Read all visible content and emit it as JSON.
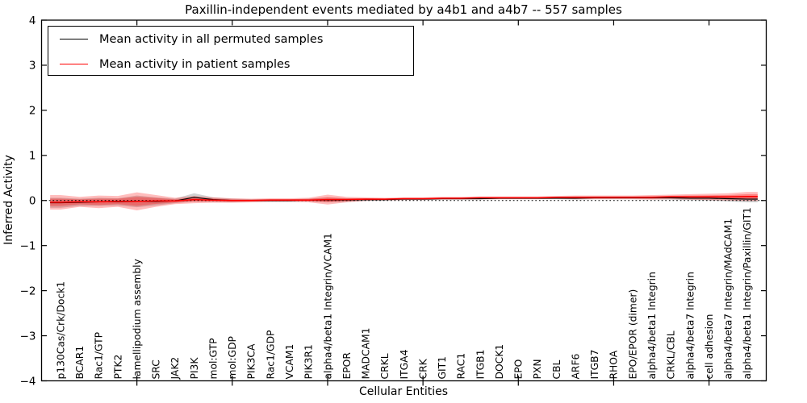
{
  "chart_data": {
    "type": "area",
    "title": "Paxillin-independent events mediated by a4b1 and a4b7 -- 557 samples",
    "xlabel": "Cellular Entities",
    "ylabel": "Inferred Activity",
    "ylim": [
      -4,
      4
    ],
    "yticks": [
      -4,
      -3,
      -2,
      -1,
      0,
      1,
      2,
      3,
      4
    ],
    "xtick_indices": [
      4,
      9,
      14,
      19,
      24,
      29,
      34
    ],
    "grid": false,
    "zero_line": true,
    "legend_position": "upper left",
    "categories": [
      "p130Cas/Crk/Dock1",
      "BCAR1",
      "Rac1/GTP",
      "PTK2",
      "lamellipodium assembly",
      "SRC",
      "JAK2",
      "PI3K",
      "mol:GTP",
      "mol:GDP",
      "PIK3CA",
      "Rac1/GDP",
      "VCAM1",
      "PIK3R1",
      "alpha4/beta1 Integrin/VCAM1",
      "EPOR",
      "MADCAM1",
      "CRKL",
      "ITGA4",
      "CRK",
      "GIT1",
      "RAC1",
      "ITGB1",
      "DOCK1",
      "EPO",
      "PXN",
      "CBL",
      "ARF6",
      "ITGB7",
      "RHOA",
      "EPO/EPOR (dimer)",
      "alpha4/beta1 Integrin",
      "CRKL/CBL",
      "alpha4/beta7 Integrin",
      "cell adhesion",
      "alpha4/beta7 Integrin/MAdCAM1",
      "alpha4/beta1 Integrin/Paxillin/GIT1"
    ],
    "series": [
      {
        "key": "permuted",
        "name": "Mean activity in all permuted samples",
        "color": "#000000",
        "values": [
          -0.05,
          -0.04,
          -0.03,
          -0.03,
          -0.02,
          -0.02,
          -0.01,
          0.07,
          0.02,
          0.0,
          0.0,
          0.0,
          0.0,
          0.01,
          0.01,
          0.01,
          0.02,
          0.02,
          0.03,
          0.03,
          0.04,
          0.04,
          0.04,
          0.05,
          0.05,
          0.05,
          0.05,
          0.05,
          0.06,
          0.06,
          0.06,
          0.06,
          0.06,
          0.05,
          0.05,
          0.04,
          0.03
        ]
      },
      {
        "key": "patient",
        "name": "Mean activity in patient samples",
        "color": "#ff0000",
        "values": [
          -0.04,
          -0.03,
          -0.03,
          -0.02,
          -0.02,
          -0.01,
          -0.01,
          0.02,
          0.01,
          0.0,
          0.0,
          0.01,
          0.01,
          0.01,
          0.02,
          0.02,
          0.03,
          0.03,
          0.04,
          0.04,
          0.05,
          0.05,
          0.06,
          0.06,
          0.06,
          0.06,
          0.07,
          0.07,
          0.07,
          0.07,
          0.07,
          0.07,
          0.08,
          0.08,
          0.08,
          0.08,
          0.09
        ]
      }
    ],
    "spread_bands": [
      {
        "name": "permuted-spread-band",
        "series": "permuted",
        "fill": "rgba(0,0,0,0.18)",
        "half_widths": [
          0.11,
          0.08,
          0.09,
          0.08,
          0.13,
          0.09,
          0.05,
          0.09,
          0.05,
          0.04,
          0.03,
          0.03,
          0.03,
          0.03,
          0.05,
          0.04,
          0.03,
          0.02,
          0.02,
          0.02,
          0.02,
          0.02,
          0.02,
          0.02,
          0.02,
          0.02,
          0.02,
          0.03,
          0.03,
          0.03,
          0.03,
          0.03,
          0.04,
          0.04,
          0.05,
          0.06,
          0.07
        ]
      },
      {
        "name": "patient-spread-band",
        "series": "patient",
        "fill": "rgba(255,0,0,0.26)",
        "half_widths": [
          0.16,
          0.11,
          0.14,
          0.12,
          0.2,
          0.13,
          0.07,
          0.08,
          0.06,
          0.05,
          0.04,
          0.04,
          0.04,
          0.05,
          0.11,
          0.06,
          0.04,
          0.03,
          0.03,
          0.03,
          0.03,
          0.03,
          0.03,
          0.03,
          0.03,
          0.03,
          0.03,
          0.04,
          0.04,
          0.04,
          0.04,
          0.05,
          0.05,
          0.06,
          0.07,
          0.08,
          0.1
        ]
      },
      {
        "name": "patient-spread-core-band",
        "series": "patient",
        "fill": "rgba(255,0,0,0.30)",
        "from": 1,
        "scale": 0.5
      }
    ]
  },
  "legend": {
    "items": [
      {
        "label": "Mean activity in all permuted samples",
        "color": "#000000"
      },
      {
        "label": "Mean activity in patient samples",
        "color": "#ff0000"
      }
    ]
  }
}
